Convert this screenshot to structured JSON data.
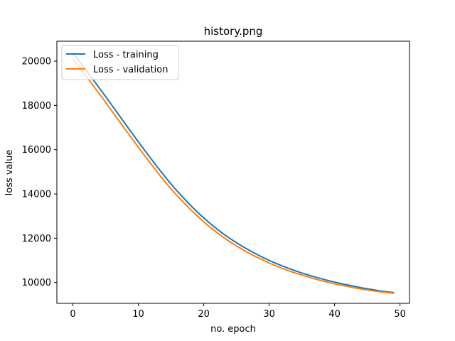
{
  "chart_data": {
    "type": "line",
    "title": "history.png",
    "xlabel": "no. epoch",
    "ylabel": "loss value",
    "xlim": [
      -2.45,
      51.45
    ],
    "ylim": [
      9060,
      20900
    ],
    "xticks": [
      0,
      10,
      20,
      30,
      40,
      50
    ],
    "yticks": [
      10000,
      12000,
      14000,
      16000,
      18000,
      20000
    ],
    "legend_position": "top-left",
    "grid": false,
    "x": [
      0,
      1,
      2,
      3,
      4,
      5,
      6,
      7,
      8,
      9,
      10,
      11,
      12,
      13,
      14,
      15,
      16,
      17,
      18,
      19,
      20,
      21,
      22,
      23,
      24,
      25,
      26,
      27,
      28,
      29,
      30,
      31,
      32,
      33,
      34,
      35,
      36,
      37,
      38,
      39,
      40,
      41,
      42,
      43,
      44,
      45,
      46,
      47,
      48,
      49
    ],
    "series": [
      {
        "name": "Loss - training",
        "color": "#1f77b4",
        "values": [
          20350,
          19980,
          19590,
          19200,
          18800,
          18400,
          17990,
          17580,
          17170,
          16760,
          16360,
          15960,
          15570,
          15180,
          14810,
          14450,
          14110,
          13790,
          13480,
          13190,
          12920,
          12660,
          12420,
          12200,
          11990,
          11800,
          11620,
          11450,
          11290,
          11140,
          11000,
          10870,
          10750,
          10640,
          10530,
          10430,
          10340,
          10250,
          10170,
          10090,
          10020,
          9950,
          9890,
          9830,
          9770,
          9720,
          9670,
          9620,
          9580,
          9550
        ]
      },
      {
        "name": "Loss - validation",
        "color": "#ff7f0e",
        "values": [
          20100,
          19730,
          19330,
          18940,
          18540,
          18140,
          17730,
          17320,
          16910,
          16510,
          16110,
          15720,
          15330,
          14950,
          14580,
          14230,
          13900,
          13590,
          13290,
          13010,
          12740,
          12490,
          12260,
          12040,
          11840,
          11650,
          11480,
          11310,
          11160,
          11020,
          10880,
          10760,
          10640,
          10530,
          10430,
          10340,
          10250,
          10160,
          10080,
          10010,
          9940,
          9880,
          9820,
          9760,
          9710,
          9660,
          9620,
          9580,
          9550,
          9520
        ]
      }
    ]
  }
}
